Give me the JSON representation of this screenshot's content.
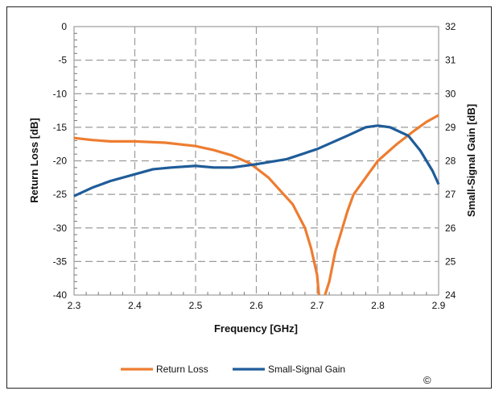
{
  "chart_data": {
    "type": "line",
    "xlabel": "Frequency [GHz]",
    "ylabel": "Return Loss [dB]",
    "y2label": "Small-Signal Gain [dB]",
    "xlim": [
      2.3,
      2.9
    ],
    "ylim": [
      -40,
      0
    ],
    "y2lim": [
      24,
      32
    ],
    "x_ticks": [
      "2.3",
      "2.4",
      "2.5",
      "2.6",
      "2.7",
      "2.8",
      "2.9"
    ],
    "y_ticks": [
      "0",
      "-5",
      "-10",
      "-15",
      "-20",
      "-25",
      "-30",
      "-35",
      "-40"
    ],
    "y2_ticks": [
      "32",
      "31",
      "30",
      "29",
      "28",
      "27",
      "26",
      "25",
      "24"
    ],
    "grid": true,
    "legend_position": "bottom",
    "series": [
      {
        "name": "Return Loss",
        "axis": "left",
        "color": "#ED7D31",
        "points": [
          [
            2.3,
            -16.6
          ],
          [
            2.33,
            -16.9
          ],
          [
            2.36,
            -17.1
          ],
          [
            2.4,
            -17.1
          ],
          [
            2.45,
            -17.3
          ],
          [
            2.5,
            -17.8
          ],
          [
            2.53,
            -18.4
          ],
          [
            2.56,
            -19.2
          ],
          [
            2.59,
            -20.4
          ],
          [
            2.62,
            -22.5
          ],
          [
            2.64,
            -24.5
          ],
          [
            2.66,
            -26.5
          ],
          [
            2.68,
            -30.0
          ],
          [
            2.69,
            -33.0
          ],
          [
            2.7,
            -37.0
          ],
          [
            2.703,
            -40.0
          ]
        ]
      },
      {
        "name": "Return Loss",
        "axis": "left",
        "color": "#ED7D31",
        "legend": false,
        "points": [
          [
            2.713,
            -40.0
          ],
          [
            2.72,
            -38.0
          ],
          [
            2.73,
            -33.5
          ],
          [
            2.74,
            -30.5
          ],
          [
            2.75,
            -27.5
          ],
          [
            2.76,
            -25.0
          ],
          [
            2.78,
            -22.5
          ],
          [
            2.8,
            -20.0
          ],
          [
            2.83,
            -17.6
          ],
          [
            2.86,
            -15.5
          ],
          [
            2.88,
            -14.2
          ],
          [
            2.9,
            -13.2
          ]
        ]
      },
      {
        "name": "Small-Signal Gain",
        "axis": "right",
        "color": "#1F5C99",
        "points": [
          [
            2.3,
            26.95
          ],
          [
            2.33,
            27.2
          ],
          [
            2.36,
            27.4
          ],
          [
            2.4,
            27.6
          ],
          [
            2.43,
            27.75
          ],
          [
            2.46,
            27.8
          ],
          [
            2.5,
            27.85
          ],
          [
            2.53,
            27.8
          ],
          [
            2.56,
            27.8
          ],
          [
            2.6,
            27.9
          ],
          [
            2.65,
            28.05
          ],
          [
            2.7,
            28.35
          ],
          [
            2.75,
            28.75
          ],
          [
            2.78,
            29.0
          ],
          [
            2.8,
            29.05
          ],
          [
            2.82,
            29.0
          ],
          [
            2.85,
            28.75
          ],
          [
            2.87,
            28.3
          ],
          [
            2.89,
            27.7
          ],
          [
            2.9,
            27.3
          ]
        ]
      }
    ]
  },
  "copyright_mark": "©"
}
